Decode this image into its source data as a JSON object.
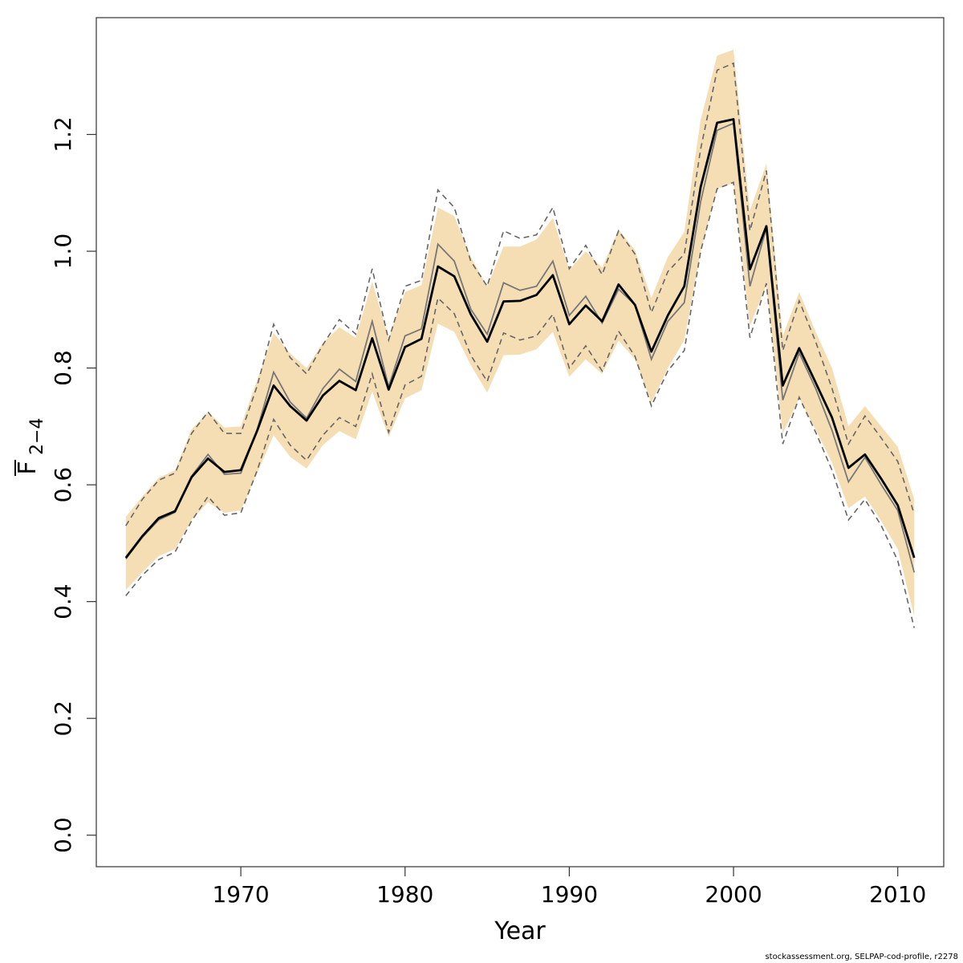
{
  "chart_data": {
    "type": "line",
    "xlabel": "Year",
    "ylabel_main": "F",
    "ylabel_sub": "2−4",
    "xlim": [
      1961.2,
      2012.8
    ],
    "ylim": [
      -0.054,
      1.4
    ],
    "x_ticks": [
      1970,
      1980,
      1990,
      2000,
      2010
    ],
    "y_ticks": [
      0.0,
      0.2,
      0.4,
      0.6,
      0.8,
      1.0,
      1.2
    ],
    "y_tick_labels": [
      "0.0",
      "0.2",
      "0.4",
      "0.6",
      "0.8",
      "1.0",
      "1.2"
    ],
    "colors": {
      "band": "#f5deb3",
      "main": "#000000",
      "alt": "#777777",
      "dashed": "#666666",
      "frame": "#333333"
    },
    "x": [
      1963,
      1964,
      1965,
      1966,
      1967,
      1968,
      1969,
      1970,
      1971,
      1972,
      1973,
      1974,
      1975,
      1976,
      1977,
      1978,
      1979,
      1980,
      1981,
      1982,
      1983,
      1984,
      1985,
      1986,
      1987,
      1988,
      1989,
      1990,
      1991,
      1992,
      1993,
      1994,
      1995,
      1996,
      1997,
      1998,
      1999,
      2000,
      2001,
      2002,
      2003,
      2004,
      2005,
      2006,
      2007,
      2008,
      2009,
      2010,
      2011
    ],
    "series": [
      {
        "role": "estimate",
        "values": [
          0.475,
          0.512,
          0.543,
          0.555,
          0.613,
          0.645,
          0.622,
          0.625,
          0.693,
          0.77,
          0.735,
          0.71,
          0.753,
          0.778,
          0.762,
          0.851,
          0.763,
          0.836,
          0.85,
          0.974,
          0.957,
          0.892,
          0.845,
          0.914,
          0.915,
          0.925,
          0.959,
          0.875,
          0.907,
          0.88,
          0.943,
          0.908,
          0.828,
          0.89,
          0.94,
          1.11,
          1.22,
          1.226,
          0.969,
          1.043,
          0.77,
          0.834,
          0.775,
          0.715,
          0.629,
          0.652,
          0.61,
          0.565,
          0.475
        ]
      },
      {
        "role": "alternative",
        "values": [
          0.473,
          0.51,
          0.54,
          0.553,
          0.615,
          0.652,
          0.618,
          0.62,
          0.695,
          0.793,
          0.742,
          0.714,
          0.765,
          0.798,
          0.777,
          0.88,
          0.768,
          0.855,
          0.867,
          1.012,
          0.983,
          0.901,
          0.858,
          0.946,
          0.933,
          0.94,
          0.983,
          0.89,
          0.923,
          0.877,
          0.935,
          0.908,
          0.815,
          0.88,
          0.912,
          1.085,
          1.207,
          1.219,
          0.94,
          1.04,
          0.745,
          0.826,
          0.765,
          0.693,
          0.605,
          0.647,
          0.6,
          0.556,
          0.45
        ]
      },
      {
        "role": "lower-band",
        "values": [
          0.42,
          0.45,
          0.478,
          0.49,
          0.54,
          0.57,
          0.552,
          0.556,
          0.62,
          0.685,
          0.648,
          0.628,
          0.668,
          0.692,
          0.678,
          0.76,
          0.682,
          0.748,
          0.762,
          0.876,
          0.862,
          0.805,
          0.758,
          0.822,
          0.823,
          0.832,
          0.862,
          0.785,
          0.815,
          0.79,
          0.847,
          0.815,
          0.74,
          0.8,
          0.848,
          1.0,
          1.107,
          1.117,
          0.872,
          0.942,
          0.688,
          0.748,
          0.694,
          0.638,
          0.56,
          0.58,
          0.538,
          0.49,
          0.375
        ]
      },
      {
        "role": "upper-band",
        "values": [
          0.545,
          0.58,
          0.612,
          0.625,
          0.695,
          0.725,
          0.698,
          0.7,
          0.78,
          0.86,
          0.825,
          0.8,
          0.843,
          0.87,
          0.852,
          0.948,
          0.852,
          0.93,
          0.942,
          1.075,
          1.06,
          0.99,
          0.94,
          1.008,
          1.008,
          1.02,
          1.057,
          0.968,
          1.0,
          0.972,
          1.037,
          1.002,
          0.92,
          0.99,
          1.033,
          1.225,
          1.335,
          1.345,
          1.07,
          1.15,
          0.855,
          0.93,
          0.862,
          0.8,
          0.7,
          0.735,
          0.7,
          0.665,
          0.575
        ]
      },
      {
        "role": "lower-dashed",
        "values": [
          0.41,
          0.445,
          0.472,
          0.485,
          0.538,
          0.58,
          0.548,
          0.552,
          0.625,
          0.712,
          0.668,
          0.642,
          0.685,
          0.715,
          0.7,
          0.79,
          0.69,
          0.771,
          0.786,
          0.92,
          0.893,
          0.822,
          0.777,
          0.86,
          0.848,
          0.855,
          0.892,
          0.8,
          0.838,
          0.795,
          0.863,
          0.82,
          0.735,
          0.795,
          0.83,
          1.0,
          1.107,
          1.118,
          0.852,
          0.945,
          0.67,
          0.75,
          0.69,
          0.625,
          0.54,
          0.575,
          0.53,
          0.47,
          0.355
        ]
      },
      {
        "role": "upper-dashed",
        "values": [
          0.53,
          0.575,
          0.608,
          0.62,
          0.688,
          0.725,
          0.688,
          0.688,
          0.77,
          0.875,
          0.818,
          0.79,
          0.84,
          0.883,
          0.858,
          0.97,
          0.848,
          0.94,
          0.95,
          1.105,
          1.075,
          0.983,
          0.94,
          1.035,
          1.022,
          1.028,
          1.075,
          0.97,
          1.01,
          0.96,
          1.035,
          0.995,
          0.895,
          0.965,
          0.995,
          1.175,
          1.31,
          1.322,
          1.035,
          1.138,
          0.83,
          0.915,
          0.845,
          0.765,
          0.67,
          0.718,
          0.68,
          0.64,
          0.55
        ]
      }
    ]
  },
  "footer": "stockassessment.org, SELPAP-cod-profile, r2278"
}
